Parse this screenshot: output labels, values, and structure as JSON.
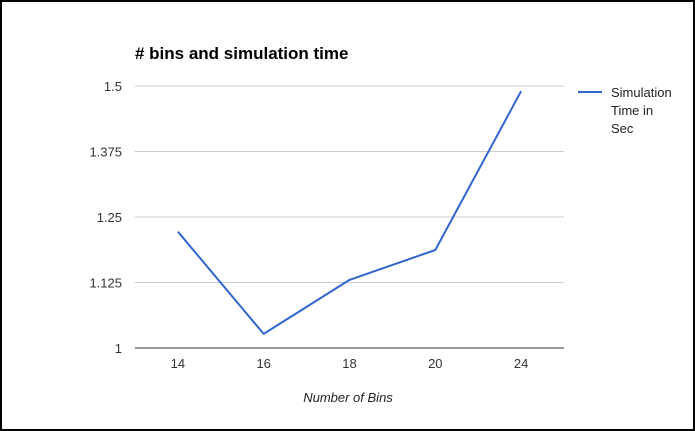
{
  "chart_data": {
    "type": "line",
    "title": "# bins and simulation time",
    "xlabel": "Number of Bins",
    "ylabel": "",
    "categories": [
      "14",
      "16",
      "18",
      "20",
      "24"
    ],
    "series": [
      {
        "name": "Simulation Time in Sec",
        "name_lines": [
          "Simulation",
          "Time in",
          "Sec"
        ],
        "values": [
          1.222,
          1.027,
          1.13,
          1.187,
          1.49
        ],
        "color": "#3366cc"
      }
    ],
    "ylim": [
      1,
      1.5
    ],
    "yticks": [
      "1",
      "1.125",
      "1.25",
      "1.375",
      "1.5"
    ],
    "grid": true,
    "legend_position": "right"
  }
}
